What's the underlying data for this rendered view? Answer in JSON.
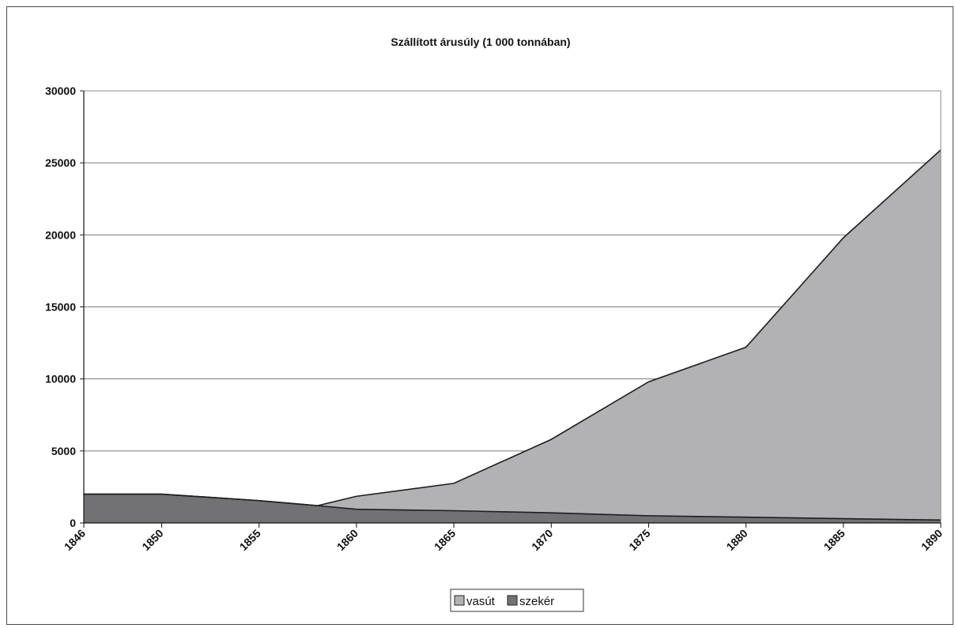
{
  "chart_data": {
    "type": "area",
    "title": "Szállított árusúly (1 000 tonnában)",
    "xlabel": "",
    "ylabel": "",
    "x": [
      1846,
      1850,
      1855,
      1858,
      1860,
      1865,
      1870,
      1875,
      1880,
      1885,
      1890
    ],
    "categories": [
      "1846",
      "1850",
      "1855",
      "1860",
      "1865",
      "1870",
      "1875",
      "1880",
      "1885",
      "1890"
    ],
    "ylim": [
      0,
      30000
    ],
    "yticks": [
      "0",
      "5000",
      "10000",
      "15000",
      "20000",
      "25000",
      "30000"
    ],
    "grid": true,
    "legend_position": "bottom",
    "stacked": true,
    "series": [
      {
        "name": "vasút",
        "color": "#b2b2b4",
        "values": [
          0,
          0,
          0,
          0,
          900,
          1900,
          5100,
          9300,
          11800,
          19500,
          25700
        ]
      },
      {
        "name": "szekér",
        "color": "#727274",
        "values": [
          2000,
          2000,
          1550,
          1200,
          950,
          850,
          700,
          500,
          400,
          300,
          200
        ]
      }
    ]
  }
}
